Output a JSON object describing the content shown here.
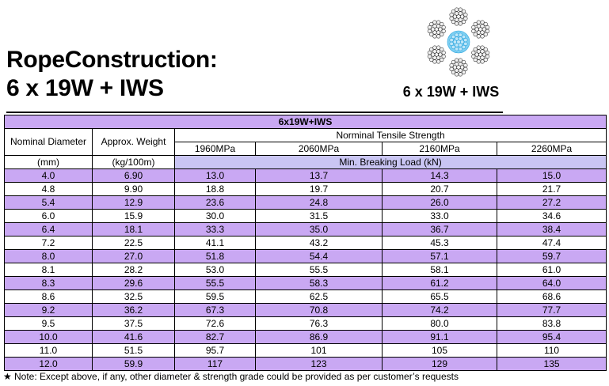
{
  "title": {
    "line1": "RopeConstruction:",
    "line2": "6 x 19W + IWS"
  },
  "rope_caption": "6 x 19W + IWS",
  "table": {
    "title": "6x19W+IWS",
    "col1_header": "Nominal Diameter",
    "col1_unit": "(mm)",
    "col2_header": "Approx. Weight",
    "col2_unit": "(kg/100m)",
    "group_header": "Norminal Tensile Strength",
    "grades": [
      "1960MPa",
      "2060MPa",
      "2160MPa",
      "2260MPa"
    ],
    "load_header": "Min. Breaking Load (kN)",
    "rows": [
      [
        "4.0",
        "6.90",
        "13.0",
        "13.7",
        "14.3",
        "15.0"
      ],
      [
        "4.8",
        "9.90",
        "18.8",
        "19.7",
        "20.7",
        "21.7"
      ],
      [
        "5.4",
        "12.9",
        "23.6",
        "24.8",
        "26.0",
        "27.2"
      ],
      [
        "6.0",
        "15.9",
        "30.0",
        "31.5",
        "33.0",
        "34.6"
      ],
      [
        "6.4",
        "18.1",
        "33.3",
        "35.0",
        "36.7",
        "38.4"
      ],
      [
        "7.2",
        "22.5",
        "41.1",
        "43.2",
        "45.3",
        "47.4"
      ],
      [
        "8.0",
        "27.0",
        "51.8",
        "54.4",
        "57.1",
        "59.7"
      ],
      [
        "8.1",
        "28.2",
        "53.0",
        "55.5",
        "58.1",
        "61.0"
      ],
      [
        "8.3",
        "29.6",
        "55.5",
        "58.3",
        "61.2",
        "64.0"
      ],
      [
        "8.6",
        "32.5",
        "59.5",
        "62.5",
        "65.5",
        "68.6"
      ],
      [
        "9.2",
        "36.2",
        "67.3",
        "70.8",
        "74.2",
        "77.7"
      ],
      [
        "9.5",
        "37.5",
        "72.6",
        "76.3",
        "80.0",
        "83.8"
      ],
      [
        "10.0",
        "41.6",
        "82.7",
        "86.9",
        "91.1",
        "95.4"
      ],
      [
        "11.0",
        "51.5",
        "95.7",
        "101",
        "105",
        "110"
      ],
      [
        "12.0",
        "59.9",
        "117",
        "123",
        "129",
        "135"
      ]
    ]
  },
  "note": {
    "icon": "star-icon",
    "text": "Note: Except above, if any, other diameter & strength grade could be provided as per customer’s requests"
  },
  "colors": {
    "row_highlight": "#c9a8f3",
    "header_blue": "#c9c5f3",
    "core_blue": "#29a3de"
  }
}
